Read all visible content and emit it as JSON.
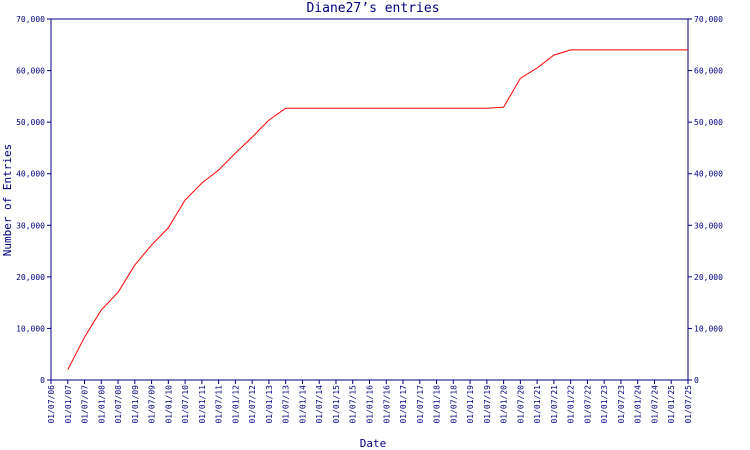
{
  "chart_data": {
    "type": "line",
    "title": "Diane27’s entries",
    "x_label": "Date",
    "y_label": "Number of Entries",
    "categories": [
      "01/07/06",
      "01/01/07",
      "01/07/07",
      "01/01/08",
      "01/07/08",
      "01/01/09",
      "01/07/09",
      "01/01/10",
      "01/07/10",
      "01/01/11",
      "01/07/11",
      "01/01/12",
      "01/07/12",
      "01/01/13",
      "01/07/13",
      "01/01/14",
      "01/07/14",
      "01/01/15",
      "01/07/15",
      "01/01/16",
      "01/07/16",
      "01/01/17",
      "01/07/17",
      "01/01/18",
      "01/07/18",
      "01/01/19",
      "01/07/19",
      "01/01/20",
      "01/07/20",
      "01/01/21",
      "01/07/21",
      "01/01/22",
      "01/07/22",
      "01/01/23",
      "01/07/23",
      "01/01/24",
      "01/07/24",
      "01/01/25",
      "01/07/25"
    ],
    "series": [
      {
        "name": "Entries",
        "color": "#ff0000",
        "values": [
          null,
          2000,
          8300,
          13600,
          17000,
          22300,
          26200,
          29500,
          34900,
          38200,
          40700,
          44000,
          47100,
          50400,
          52700,
          52700,
          52700,
          52700,
          52700,
          52700,
          52700,
          52700,
          52700,
          52700,
          52700,
          52700,
          52700,
          52900,
          58500,
          60500,
          63000,
          64000,
          64000,
          64000,
          64000,
          64000,
          64000,
          64000,
          64000
        ]
      }
    ],
    "ylim": [
      0,
      70000
    ],
    "yticks": [
      0,
      {
        "value": 10000,
        "label": "10,000"
      },
      {
        "value": 20000,
        "label": "20,000"
      },
      {
        "value": 30000,
        "label": "30,000"
      },
      {
        "value": 40000,
        "label": "40,000"
      },
      {
        "value": 50000,
        "label": "50,000"
      },
      {
        "value": 60000,
        "label": "60,000"
      },
      {
        "value": 70000,
        "label": "70,000"
      }
    ],
    "y2lim": [
      0,
      70000
    ],
    "y2ticks": [
      0,
      {
        "value": 10000,
        "label": "10,000"
      },
      {
        "value": 20000,
        "label": "20,000"
      },
      {
        "value": 30000,
        "label": "30,000"
      },
      {
        "value": 40000,
        "label": "40,000"
      },
      {
        "value": 50000,
        "label": "50,000"
      },
      {
        "value": 60000,
        "label": "60,000"
      },
      {
        "value": 70000,
        "label": "70,000"
      }
    ]
  }
}
